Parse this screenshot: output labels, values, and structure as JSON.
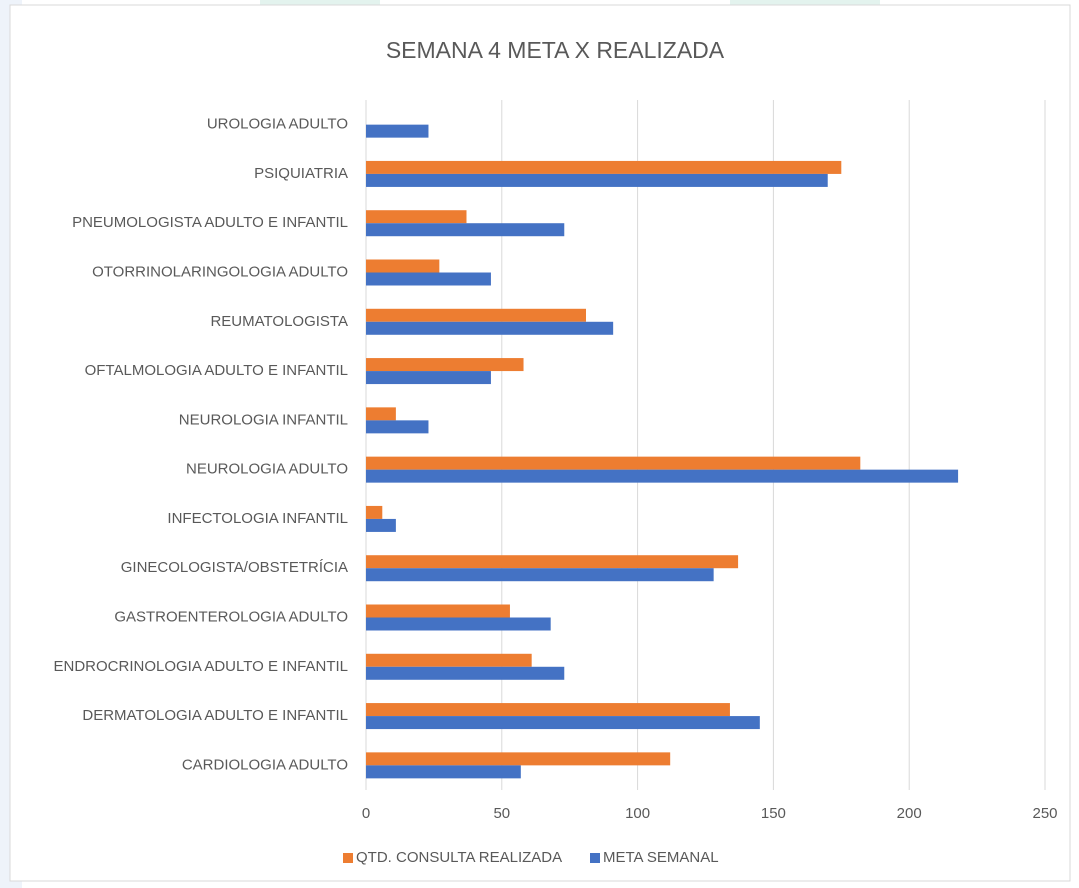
{
  "chart_data": {
    "type": "hbar",
    "title": "SEMANA 4 META X REALIZADA",
    "categories": [
      "UROLOGIA ADULTO",
      "PSIQUIATRIA",
      "PNEUMOLOGISTA ADULTO E INFANTIL",
      "OTORRINOLARINGOLOGIA ADULTO",
      "REUMATOLOGISTA",
      "OFTALMOLOGIA ADULTO E INFANTIL",
      "NEUROLOGIA INFANTIL",
      "NEUROLOGIA ADULTO",
      "INFECTOLOGIA INFANTIL",
      "GINECOLOGISTA/OBSTETRÍCIA",
      "GASTROENTEROLOGIA ADULTO",
      "ENDROCRINOLOGIA ADULTO E INFANTIL",
      "DERMATOLOGIA ADULTO E INFANTIL",
      "CARDIOLOGIA ADULTO"
    ],
    "series": [
      {
        "name": "QTD. CONSULTA REALIZADA",
        "color": "#ED7D31",
        "values": [
          0,
          175,
          37,
          27,
          81,
          58,
          11,
          182,
          6,
          137,
          53,
          61,
          134,
          112
        ]
      },
      {
        "name": "META SEMANAL",
        "color": "#4472C4",
        "values": [
          23,
          170,
          73,
          46,
          91,
          46,
          23,
          218,
          11,
          128,
          68,
          73,
          145,
          57
        ]
      }
    ],
    "xlim": [
      0,
      250
    ],
    "xticks": [
      0,
      50,
      100,
      150,
      200,
      250
    ],
    "grid": true,
    "legend": "bottom"
  }
}
